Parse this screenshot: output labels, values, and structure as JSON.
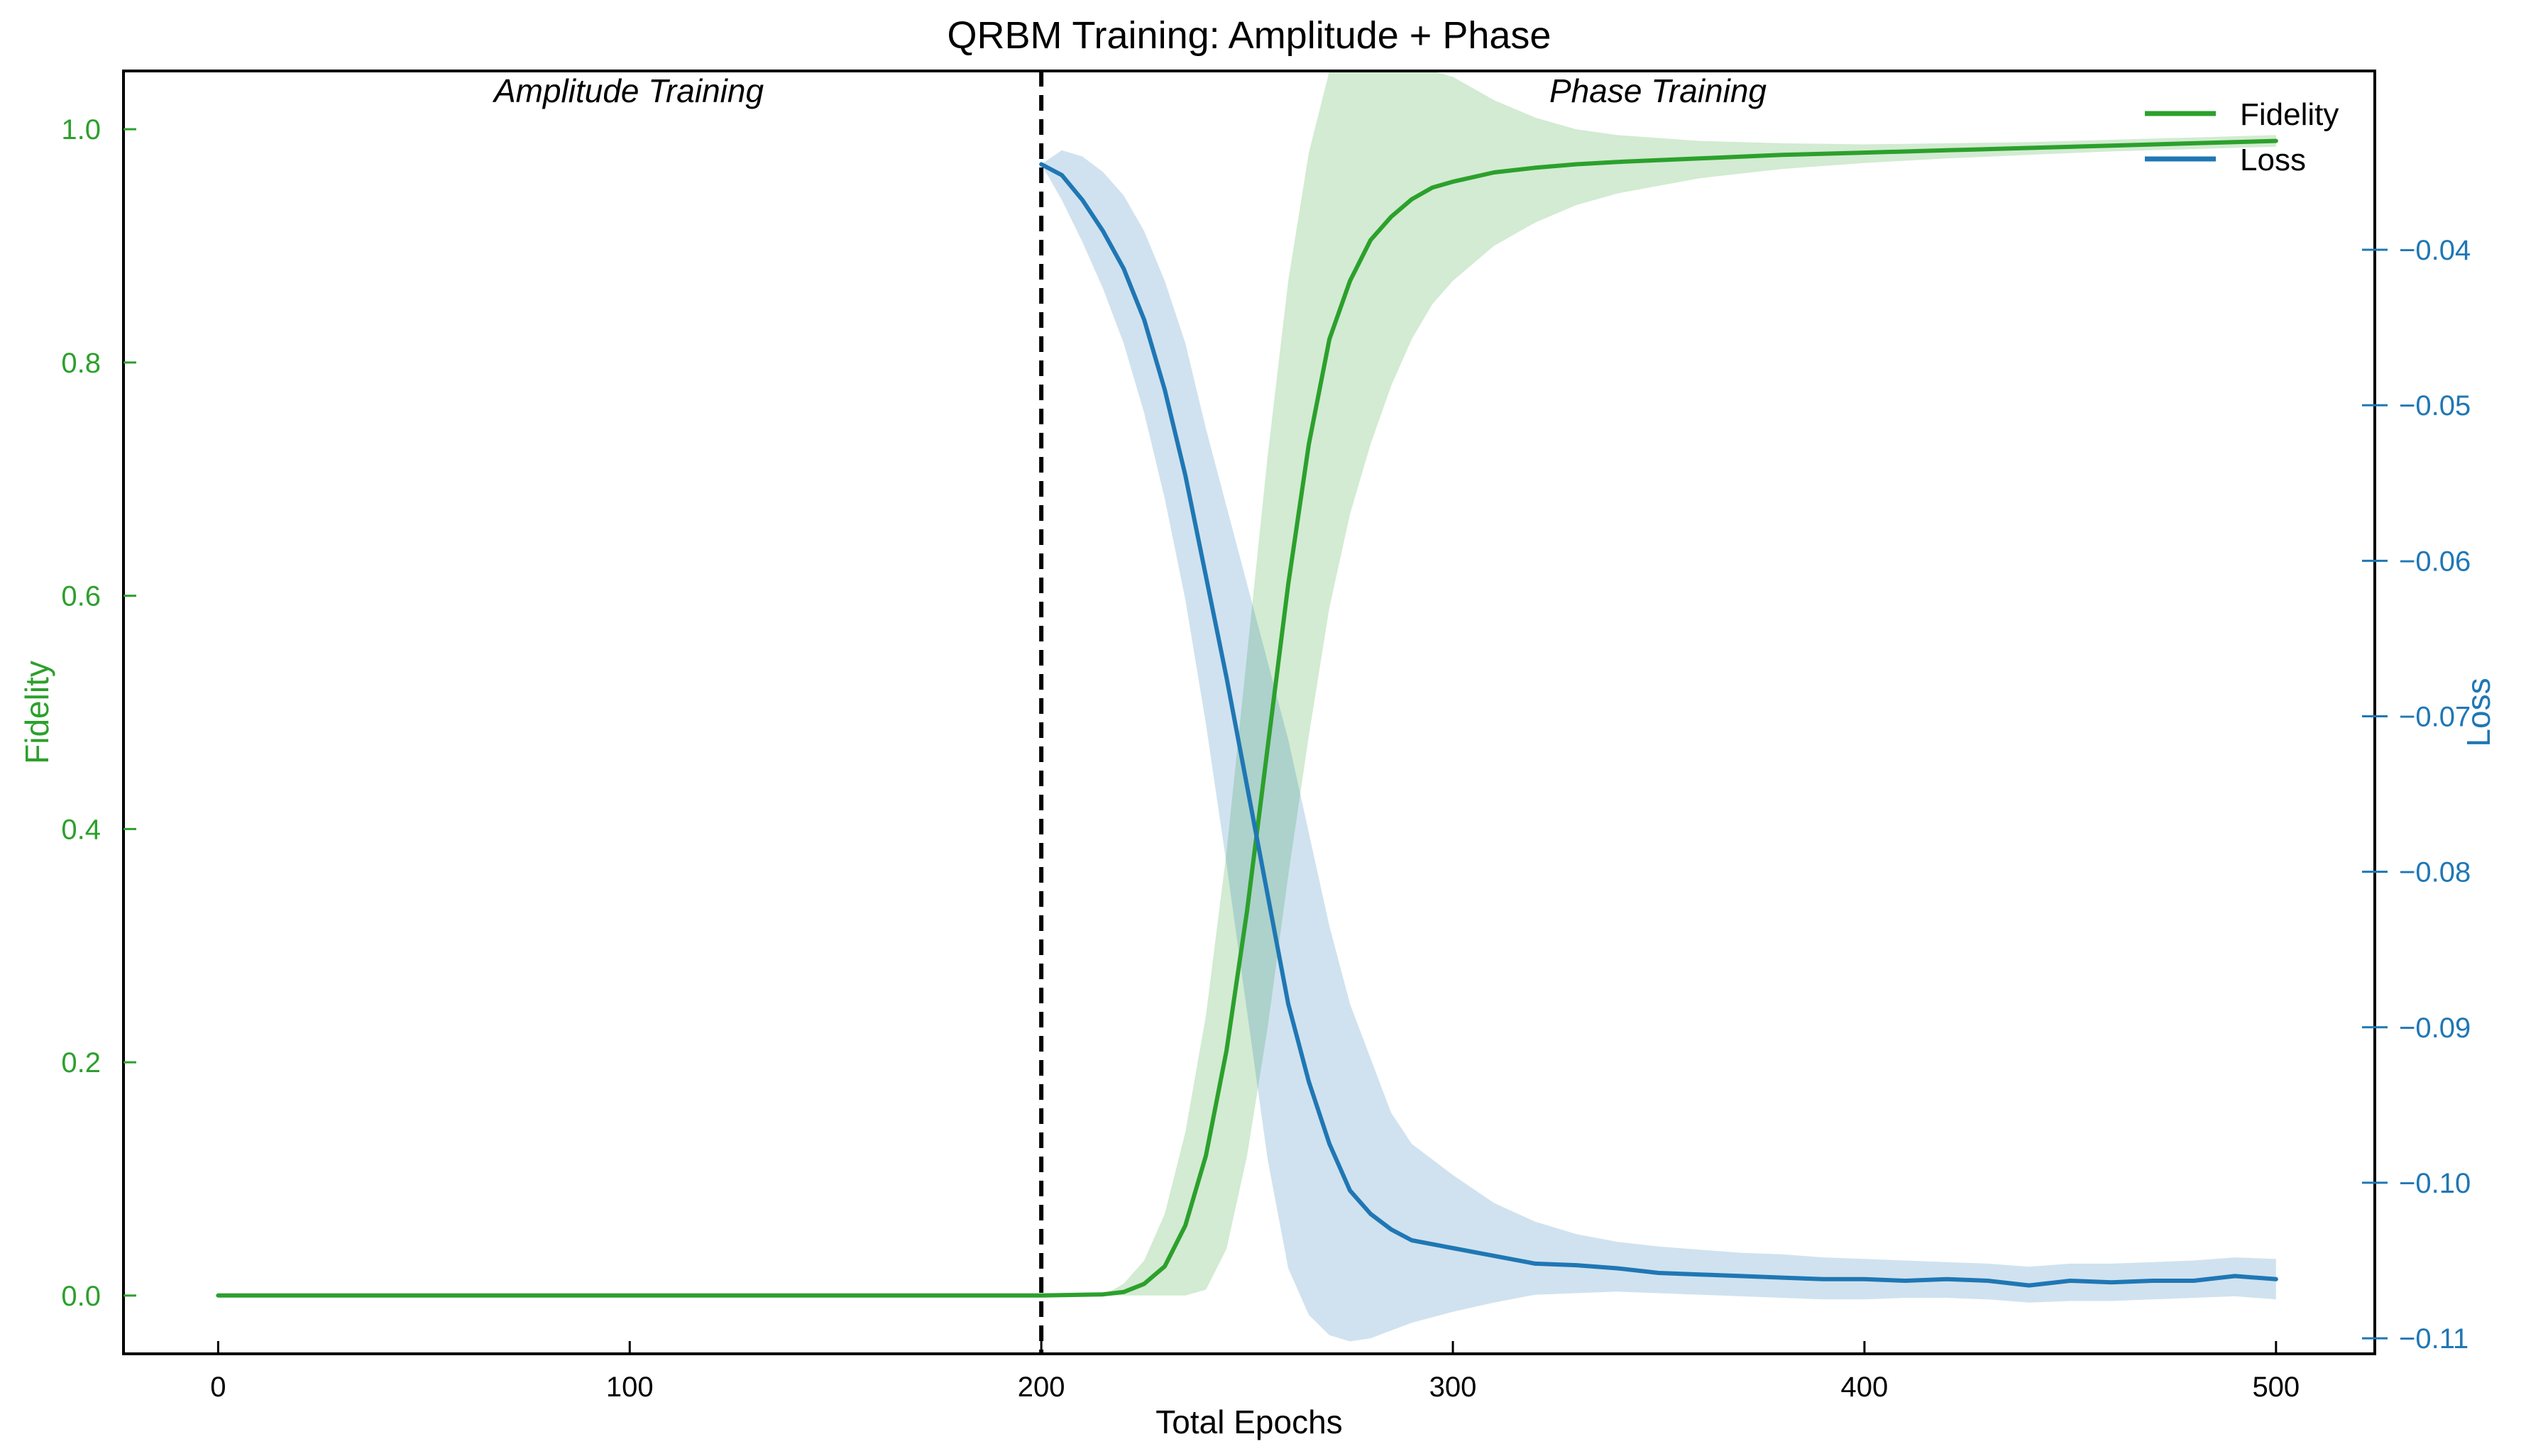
{
  "chart_data": {
    "type": "line",
    "title": "QRBM Training: Amplitude + Phase",
    "xlabel": "Total Epochs",
    "ylabel_left": "Fidelity",
    "ylabel_right": "Loss",
    "xlim": [
      -23,
      524
    ],
    "ylim_left": [
      -0.05,
      1.05
    ],
    "ylim_right": [
      -0.111,
      -0.0285
    ],
    "x_ticks": [
      0,
      100,
      200,
      300,
      400,
      500
    ],
    "x_tick_labels": [
      "0",
      "100",
      "200",
      "300",
      "400",
      "500"
    ],
    "y_left_ticks": [
      0.0,
      0.2,
      0.4,
      0.6,
      0.8,
      1.0
    ],
    "y_left_tick_labels": [
      "0.0",
      "0.2",
      "0.4",
      "0.6",
      "0.8",
      "1.0"
    ],
    "y_right_ticks": [
      -0.04,
      -0.05,
      -0.06,
      -0.07,
      -0.08,
      -0.09,
      -0.1,
      -0.11
    ],
    "y_right_tick_labels": [
      "−0.04",
      "−0.05",
      "−0.06",
      "−0.07",
      "−0.08",
      "−0.09",
      "−0.10",
      "−0.11"
    ],
    "vline": {
      "x": 200,
      "style": "dashed",
      "color": "#000000"
    },
    "annotations": [
      {
        "text": "Amplitude Training",
        "x": 100,
        "y": 1.03,
        "style": "italic"
      },
      {
        "text": "Phase Training",
        "x": 350,
        "y": 1.03,
        "style": "italic"
      }
    ],
    "legend": {
      "position": "top-right",
      "entries": [
        "Fidelity",
        "Loss"
      ]
    },
    "colors": {
      "fidelity": "#2ca02c",
      "loss": "#1f77b4",
      "fidelity_band": "#2ca02c",
      "loss_band": "#1f77b4"
    },
    "grid": false,
    "series": [
      {
        "name": "Fidelity",
        "axis": "left",
        "color": "#2ca02c",
        "x": [
          0,
          50,
          100,
          150,
          200,
          215,
          220,
          225,
          230,
          235,
          240,
          245,
          250,
          255,
          260,
          265,
          270,
          275,
          280,
          285,
          290,
          295,
          300,
          310,
          320,
          330,
          340,
          360,
          380,
          400,
          420,
          440,
          460,
          480,
          500
        ],
        "y": [
          0.0,
          0.0,
          0.0,
          0.0,
          0.0,
          0.001,
          0.003,
          0.01,
          0.025,
          0.06,
          0.12,
          0.21,
          0.33,
          0.47,
          0.61,
          0.73,
          0.82,
          0.87,
          0.905,
          0.925,
          0.94,
          0.95,
          0.955,
          0.963,
          0.967,
          0.97,
          0.972,
          0.975,
          0.978,
          0.98,
          0.982,
          0.984,
          0.986,
          0.988,
          0.99
        ],
        "band_lower": [
          0.0,
          0.0,
          0.0,
          0.0,
          0.0,
          0.0,
          0.0,
          0.0,
          0.0,
          0.0,
          0.005,
          0.04,
          0.12,
          0.23,
          0.36,
          0.48,
          0.59,
          0.67,
          0.73,
          0.78,
          0.82,
          0.85,
          0.87,
          0.9,
          0.92,
          0.935,
          0.945,
          0.958,
          0.966,
          0.971,
          0.975,
          0.978,
          0.981,
          0.983,
          0.985
        ],
        "band_upper": [
          0.0,
          0.0,
          0.0,
          0.0,
          0.0,
          0.0,
          0.01,
          0.03,
          0.07,
          0.14,
          0.24,
          0.38,
          0.55,
          0.72,
          0.87,
          0.98,
          1.07,
          1.12,
          1.12,
          1.1,
          1.08,
          1.06,
          1.045,
          1.025,
          1.01,
          1.0,
          0.995,
          0.99,
          0.988,
          0.987,
          0.988,
          0.989,
          0.991,
          0.993,
          0.995
        ]
      },
      {
        "name": "Loss",
        "axis": "right",
        "color": "#1f77b4",
        "x": [
          200,
          205,
          210,
          215,
          220,
          225,
          230,
          235,
          240,
          245,
          250,
          255,
          260,
          265,
          270,
          275,
          280,
          285,
          290,
          300,
          310,
          320,
          330,
          340,
          350,
          360,
          370,
          380,
          390,
          400,
          410,
          420,
          430,
          440,
          450,
          460,
          470,
          480,
          490,
          500
        ],
        "y": [
          -0.0345,
          -0.0352,
          -0.0368,
          -0.0388,
          -0.0412,
          -0.0445,
          -0.049,
          -0.0545,
          -0.061,
          -0.0675,
          -0.0745,
          -0.0815,
          -0.0885,
          -0.0935,
          -0.0975,
          -0.1005,
          -0.102,
          -0.103,
          -0.1037,
          -0.1042,
          -0.1047,
          -0.1052,
          -0.1053,
          -0.1055,
          -0.1058,
          -0.1059,
          -0.106,
          -0.1061,
          -0.1062,
          -0.1062,
          -0.1063,
          -0.1062,
          -0.1063,
          -0.1066,
          -0.1063,
          -0.1064,
          -0.1063,
          -0.1063,
          -0.106,
          -0.1062
        ],
        "band_lower": [
          -0.0345,
          -0.0368,
          -0.0395,
          -0.0425,
          -0.046,
          -0.0505,
          -0.056,
          -0.0625,
          -0.0705,
          -0.0795,
          -0.089,
          -0.0985,
          -0.1055,
          -0.1085,
          -0.1098,
          -0.1102,
          -0.11,
          -0.1095,
          -0.109,
          -0.1083,
          -0.1077,
          -0.1072,
          -0.1071,
          -0.107,
          -0.1071,
          -0.1072,
          -0.1073,
          -0.1074,
          -0.1075,
          -0.1075,
          -0.1074,
          -0.1074,
          -0.1075,
          -0.1077,
          -0.1076,
          -0.1076,
          -0.1075,
          -0.1074,
          -0.1073,
          -0.1075
        ],
        "band_upper": [
          -0.0345,
          -0.0336,
          -0.034,
          -0.035,
          -0.0365,
          -0.0388,
          -0.042,
          -0.046,
          -0.0515,
          -0.0565,
          -0.0615,
          -0.0665,
          -0.0715,
          -0.0775,
          -0.0835,
          -0.0885,
          -0.092,
          -0.0955,
          -0.0975,
          -0.0995,
          -0.1013,
          -0.1025,
          -0.1033,
          -0.1038,
          -0.1041,
          -0.1043,
          -0.1045,
          -0.1046,
          -0.1048,
          -0.1049,
          -0.105,
          -0.1051,
          -0.1052,
          -0.1054,
          -0.1052,
          -0.1052,
          -0.1051,
          -0.105,
          -0.1048,
          -0.1049
        ]
      }
    ]
  }
}
